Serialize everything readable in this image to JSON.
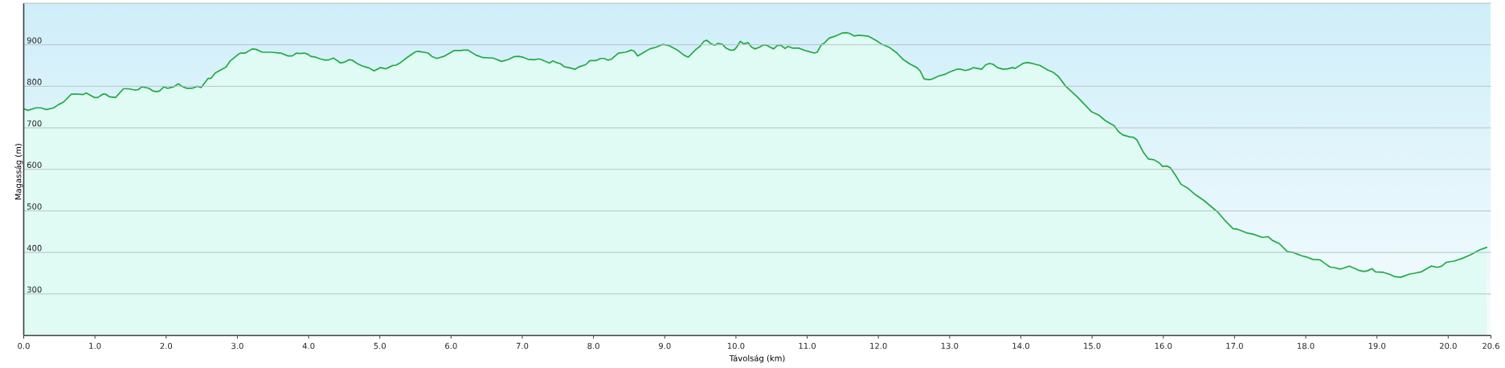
{
  "chart_data": {
    "type": "area",
    "xlabel": "Távolság (km)",
    "ylabel": "Magasság (m)",
    "color": "#22aa46",
    "grid": "y",
    "marker": "none",
    "line_style": "solid",
    "xlim": [
      0,
      20.6
    ],
    "ylim": [
      200,
      1000
    ],
    "xticks": [
      {
        "value": 0,
        "label": "0.0"
      },
      {
        "value": 1,
        "label": "1.0"
      },
      {
        "value": 2,
        "label": "2.0"
      },
      {
        "value": 3,
        "label": "3.0"
      },
      {
        "value": 4,
        "label": "4.0"
      },
      {
        "value": 5,
        "label": "5.0"
      },
      {
        "value": 6,
        "label": "6.0"
      },
      {
        "value": 7,
        "label": "7.0"
      },
      {
        "value": 8,
        "label": "8.0"
      },
      {
        "value": 9,
        "label": "9.0"
      },
      {
        "value": 10,
        "label": "10.0"
      },
      {
        "value": 11,
        "label": "11.0"
      },
      {
        "value": 12,
        "label": "12.0"
      },
      {
        "value": 13,
        "label": "13.0"
      },
      {
        "value": 14,
        "label": "14.0"
      },
      {
        "value": 15,
        "label": "15.0"
      },
      {
        "value": 16,
        "label": "16.0"
      },
      {
        "value": 17,
        "label": "17.0"
      },
      {
        "value": 18,
        "label": "18.0"
      },
      {
        "value": 19,
        "label": "19.0"
      },
      {
        "value": 20,
        "label": "20.0"
      },
      {
        "value": 20.6,
        "label": "20.6"
      }
    ],
    "yticks": [
      300,
      400,
      500,
      600,
      700,
      800,
      900
    ],
    "x": [
      0.0,
      0.06,
      0.17,
      0.24,
      0.32,
      0.42,
      0.49,
      0.56,
      0.67,
      0.76,
      0.83,
      0.88,
      0.99,
      1.04,
      1.11,
      1.15,
      1.2,
      1.29,
      1.4,
      1.47,
      1.56,
      1.61,
      1.66,
      1.76,
      1.81,
      1.87,
      1.91,
      1.97,
      2.02,
      2.11,
      2.17,
      2.22,
      2.29,
      2.36,
      2.44,
      2.49,
      2.59,
      2.63,
      2.69,
      2.84,
      2.9,
      3.02,
      3.05,
      3.11,
      3.21,
      3.26,
      3.35,
      3.47,
      3.61,
      3.71,
      3.77,
      3.83,
      3.88,
      3.94,
      3.98,
      4.03,
      4.1,
      4.16,
      4.24,
      4.29,
      4.35,
      4.39,
      4.45,
      4.5,
      4.57,
      4.61,
      4.68,
      4.75,
      4.79,
      4.85,
      4.92,
      5.01,
      5.08,
      5.12,
      5.18,
      5.23,
      5.29,
      5.38,
      5.5,
      5.54,
      5.68,
      5.73,
      5.8,
      5.9,
      6.04,
      6.14,
      6.17,
      6.24,
      6.35,
      6.45,
      6.59,
      6.71,
      6.8,
      6.88,
      6.94,
      7.01,
      7.08,
      7.17,
      7.23,
      7.27,
      7.38,
      7.43,
      7.48,
      7.54,
      7.59,
      7.65,
      7.74,
      7.8,
      7.89,
      7.95,
      8.04,
      8.1,
      8.15,
      8.2,
      8.25,
      8.35,
      8.45,
      8.53,
      8.57,
      8.62,
      8.7,
      8.79,
      8.88,
      8.97,
      9.06,
      9.17,
      9.27,
      9.33,
      9.44,
      9.5,
      9.55,
      9.59,
      9.65,
      9.7,
      9.75,
      9.81,
      9.86,
      9.92,
      9.97,
      10.01,
      10.06,
      10.11,
      10.17,
      10.22,
      10.27,
      10.33,
      10.38,
      10.43,
      10.48,
      10.53,
      10.58,
      10.63,
      10.69,
      10.73,
      10.79,
      10.88,
      10.99,
      11.1,
      11.14,
      11.2,
      11.24,
      11.31,
      11.4,
      11.49,
      11.56,
      11.6,
      11.66,
      11.72,
      11.85,
      11.9,
      11.97,
      12.04,
      12.16,
      12.26,
      12.35,
      12.45,
      12.54,
      12.59,
      12.64,
      12.7,
      12.75,
      12.85,
      12.92,
      13.01,
      13.1,
      13.15,
      13.22,
      13.29,
      13.33,
      13.45,
      13.51,
      13.56,
      13.61,
      13.67,
      13.75,
      13.82,
      13.88,
      13.92,
      14.03,
      14.09,
      14.16,
      14.27,
      14.38,
      14.46,
      14.53,
      14.63,
      14.79,
      14.99,
      15.1,
      15.18,
      15.26,
      15.31,
      15.37,
      15.43,
      15.53,
      15.58,
      15.63,
      15.72,
      15.79,
      15.87,
      15.94,
      15.99,
      16.05,
      16.1,
      16.17,
      16.25,
      16.35,
      16.45,
      16.57,
      16.66,
      16.76,
      16.86,
      16.98,
      17.04,
      17.17,
      17.26,
      17.39,
      17.47,
      17.53,
      17.63,
      17.74,
      17.82,
      17.94,
      18.01,
      18.1,
      18.2,
      18.28,
      18.34,
      18.41,
      18.48,
      18.53,
      18.61,
      18.68,
      18.74,
      18.82,
      18.87,
      18.93,
      18.98,
      19.09,
      19.18,
      19.24,
      19.33,
      19.38,
      19.46,
      19.53,
      19.62,
      19.76,
      19.85,
      19.91,
      19.97,
      20.08,
      20.19,
      20.31,
      20.44,
      20.54
    ],
    "values": [
      746,
      742,
      748,
      748,
      744,
      748,
      756,
      762,
      781,
      781,
      780,
      784,
      773,
      773,
      781,
      781,
      775,
      773,
      794,
      794,
      791,
      792,
      799,
      795,
      789,
      787,
      789,
      799,
      795,
      799,
      806,
      800,
      795,
      795,
      800,
      797,
      819,
      819,
      832,
      846,
      861,
      878,
      880,
      880,
      890,
      889,
      882,
      882,
      880,
      873,
      873,
      880,
      879,
      880,
      878,
      872,
      870,
      866,
      863,
      864,
      868,
      863,
      856,
      858,
      864,
      863,
      855,
      849,
      847,
      844,
      837,
      845,
      842,
      845,
      850,
      851,
      857,
      869,
      883,
      884,
      880,
      872,
      867,
      872,
      886,
      886,
      887,
      887,
      875,
      869,
      868,
      860,
      864,
      871,
      872,
      870,
      865,
      864,
      866,
      864,
      856,
      861,
      857,
      854,
      847,
      845,
      841,
      847,
      852,
      862,
      862,
      867,
      867,
      863,
      865,
      880,
      882,
      887,
      885,
      873,
      881,
      890,
      894,
      901,
      898,
      888,
      875,
      870,
      889,
      897,
      908,
      911,
      902,
      899,
      903,
      901,
      892,
      887,
      887,
      894,
      908,
      902,
      905,
      894,
      890,
      894,
      899,
      899,
      894,
      890,
      898,
      899,
      891,
      896,
      892,
      892,
      885,
      880,
      882,
      900,
      904,
      916,
      921,
      928,
      929,
      927,
      921,
      923,
      921,
      917,
      910,
      902,
      893,
      880,
      864,
      853,
      845,
      836,
      818,
      816,
      817,
      825,
      828,
      835,
      841,
      841,
      838,
      841,
      845,
      841,
      852,
      855,
      853,
      845,
      841,
      842,
      845,
      843,
      855,
      857,
      855,
      850,
      839,
      833,
      823,
      800,
      775,
      739,
      730,
      718,
      710,
      705,
      691,
      683,
      678,
      677,
      671,
      641,
      625,
      623,
      616,
      607,
      608,
      604,
      586,
      564,
      554,
      539,
      525,
      512,
      498,
      478,
      457,
      456,
      447,
      444,
      436,
      438,
      429,
      421,
      402,
      400,
      392,
      389,
      383,
      382,
      372,
      365,
      363,
      360,
      362,
      367,
      362,
      357,
      354,
      356,
      361,
      353,
      352,
      347,
      342,
      340,
      343,
      348,
      350,
      353,
      367,
      364,
      367,
      376,
      379,
      385,
      394,
      406,
      412
    ]
  }
}
